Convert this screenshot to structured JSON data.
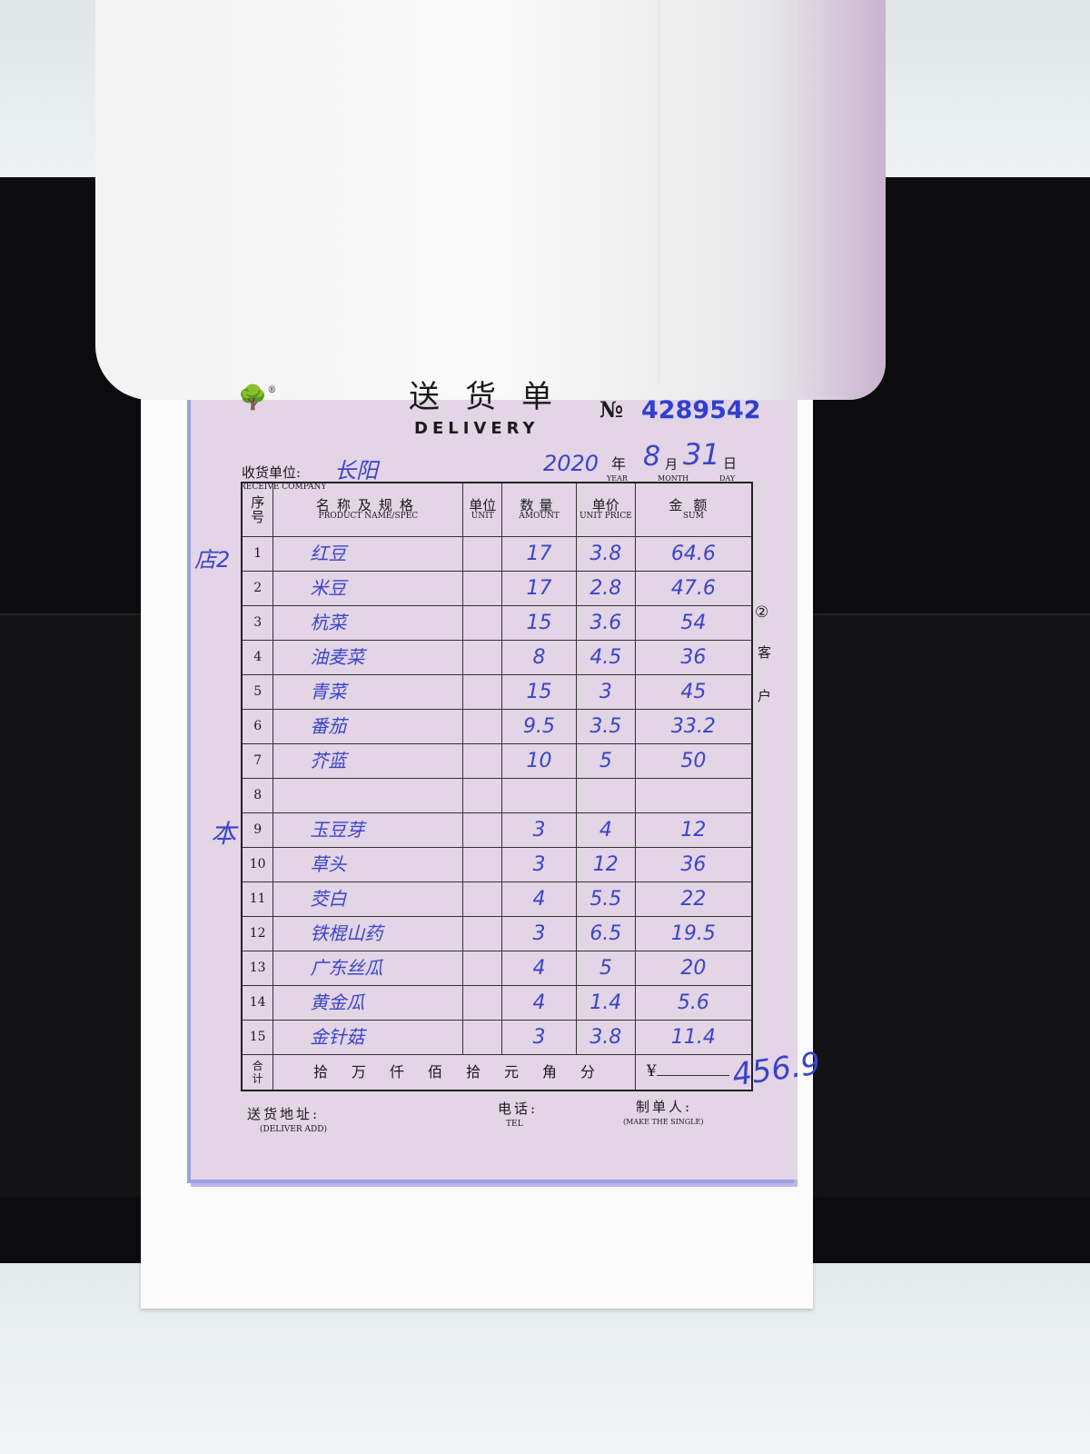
{
  "form": {
    "title_cn": "送货单",
    "title_en": "DELIVERY",
    "number_label": "№",
    "number": "4289542",
    "receive_company_label": "收货单位:",
    "receive_company_label_en": "RECEIVE COMPANY",
    "receive_company_value": "长阳",
    "year_value": "2020",
    "year_label": "年",
    "year_label_en": "YEAR",
    "month_value": "8",
    "month_label": "月",
    "month_label_en": "MONTH",
    "day_value": "31",
    "day_label": "日",
    "day_label_en": "DAY",
    "copy_marker": "②",
    "copy_label_1": "客",
    "copy_label_2": "户",
    "margin_note_1": "店2",
    "margin_note_2": "本",
    "columns": [
      {
        "cn": "序号",
        "en": ""
      },
      {
        "cn": "名称及规格",
        "en": "PRODUCT NAME/SPEC"
      },
      {
        "cn": "单位",
        "en": "UNIT"
      },
      {
        "cn": "数量",
        "en": "AMOUNT"
      },
      {
        "cn": "单价",
        "en": "UNIT PRICE"
      },
      {
        "cn": "金额",
        "en": "SUM"
      }
    ],
    "rows": [
      {
        "no": "1",
        "name": "红豆",
        "unit": "",
        "amount": "17",
        "price": "3.8",
        "sum": "64.6"
      },
      {
        "no": "2",
        "name": "米豆",
        "unit": "",
        "amount": "17",
        "price": "2.8",
        "sum": "47.6"
      },
      {
        "no": "3",
        "name": "杭菜",
        "unit": "",
        "amount": "15",
        "price": "3.6",
        "sum": "54"
      },
      {
        "no": "4",
        "name": "油麦菜",
        "unit": "",
        "amount": "8",
        "price": "4.5",
        "sum": "36"
      },
      {
        "no": "5",
        "name": "青菜",
        "unit": "",
        "amount": "15",
        "price": "3",
        "sum": "45"
      },
      {
        "no": "6",
        "name": "番茄",
        "unit": "",
        "amount": "9.5",
        "price": "3.5",
        "sum": "33.2"
      },
      {
        "no": "7",
        "name": "芥蓝",
        "unit": "",
        "amount": "10",
        "price": "5",
        "sum": "50"
      },
      {
        "no": "8",
        "name": "",
        "unit": "",
        "amount": "",
        "price": "",
        "sum": ""
      },
      {
        "no": "9",
        "name": "玉豆芽",
        "unit": "",
        "amount": "3",
        "price": "4",
        "sum": "12"
      },
      {
        "no": "10",
        "name": "草头",
        "unit": "",
        "amount": "3",
        "price": "12",
        "sum": "36"
      },
      {
        "no": "11",
        "name": "茭白",
        "unit": "",
        "amount": "4",
        "price": "5.5",
        "sum": "22"
      },
      {
        "no": "12",
        "name": "铁棍山药",
        "unit": "",
        "amount": "3",
        "price": "6.5",
        "sum": "19.5"
      },
      {
        "no": "13",
        "name": "广东丝瓜",
        "unit": "",
        "amount": "4",
        "price": "5",
        "sum": "20"
      },
      {
        "no": "14",
        "name": "黄金瓜",
        "unit": "",
        "amount": "4",
        "price": "1.4",
        "sum": "5.6"
      },
      {
        "no": "15",
        "name": "金针菇",
        "unit": "",
        "amount": "3",
        "price": "3.8",
        "sum": "11.4"
      }
    ],
    "total_label_1": "合",
    "total_label_2": "计",
    "total_units": [
      "拾",
      "万",
      "仟",
      "佰",
      "拾",
      "元",
      "角",
      "分"
    ],
    "currency": "¥",
    "total_value": "456.9",
    "deliver_add_label": "送货地址:",
    "deliver_add_label_en": "(DELIVER ADD)",
    "tel_label": "电话:",
    "tel_label_en": "TEL",
    "maker_label": "制单人:",
    "maker_label_en": "(MAKE THE SINGLE)"
  },
  "colors": {
    "form_paper": "#e3d4e6",
    "ink": "#3a45c8",
    "number_stamp": "#2f3fd0"
  }
}
